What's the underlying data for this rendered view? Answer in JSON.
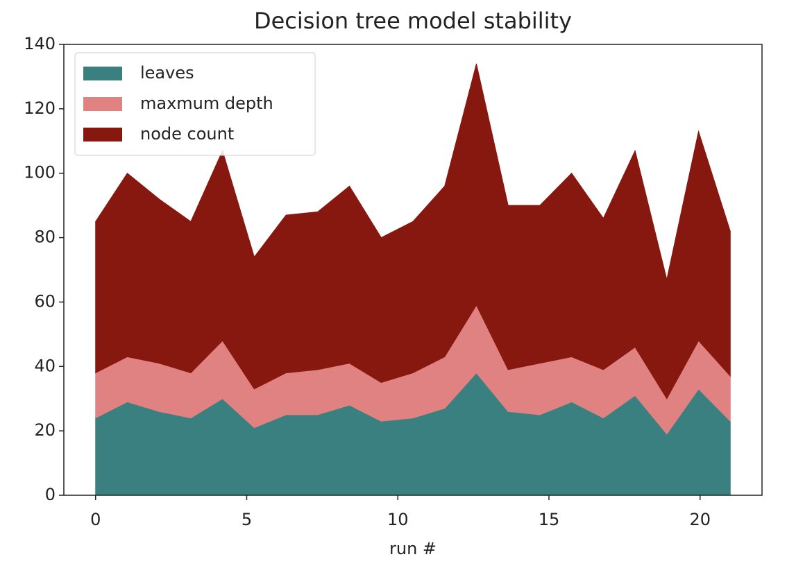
{
  "chart_data": {
    "type": "stackedarea",
    "title": "Decision tree model stability",
    "x_label": "run #",
    "x": [
      0,
      1.05,
      2.1,
      3.15,
      4.2,
      5.25,
      6.3,
      7.35,
      8.4,
      9.45,
      10.5,
      11.55,
      12.6,
      13.65,
      14.7,
      15.75,
      16.8,
      17.85,
      18.9,
      19.95,
      21
    ],
    "series": [
      {
        "name": "leaves",
        "color": "#3a8080",
        "values": [
          24,
          29,
          26,
          24,
          30,
          21,
          25,
          25,
          28,
          23,
          24,
          27,
          38,
          26,
          25,
          29,
          24,
          31,
          19,
          33,
          23
        ]
      },
      {
        "name": "maxmum depth",
        "color": "#e08282",
        "values": [
          14,
          14,
          15,
          14,
          18,
          12,
          13,
          14,
          13,
          12,
          14,
          16,
          21,
          13,
          16,
          14,
          15,
          15,
          11,
          15,
          14
        ]
      },
      {
        "name": "node count",
        "color": "#861810",
        "values": [
          47,
          57,
          51,
          47,
          59,
          41,
          49,
          49,
          55,
          45,
          47,
          53,
          75,
          51,
          49,
          57,
          47,
          61,
          37,
          65,
          45
        ]
      }
    ],
    "xlim": [
      -1.05,
      22.05
    ],
    "xticks": [
      0,
      5,
      10,
      15,
      20
    ],
    "ylim": [
      0,
      140
    ],
    "yticks": [
      0,
      20,
      40,
      60,
      80,
      100,
      120,
      140
    ],
    "legend": "upper left"
  }
}
